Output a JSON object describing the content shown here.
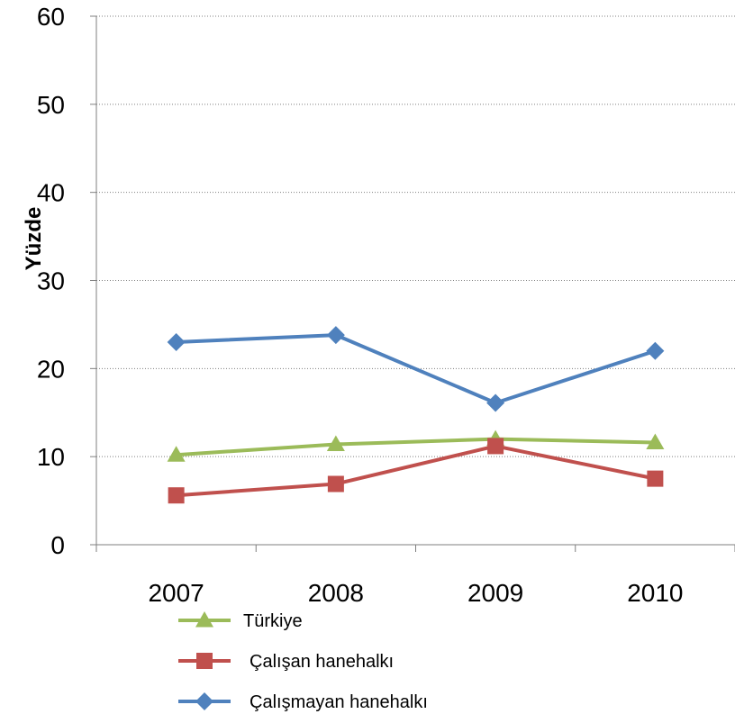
{
  "chart_data": {
    "type": "line",
    "title": "",
    "xlabel": "",
    "ylabel": "Yüzde",
    "categories": [
      "2007",
      "2008",
      "2009",
      "2010"
    ],
    "ylim": [
      0,
      60
    ],
    "yticks": [
      "0",
      "10",
      "20",
      "30",
      "40",
      "50",
      "60"
    ],
    "grid": "horizontal dotted",
    "legend_position": "bottom",
    "series": [
      {
        "name": "Türkiye",
        "values": [
          10.2,
          11.4,
          12.0,
          11.6
        ],
        "color": "#9bbb59",
        "marker": "triangle"
      },
      {
        "name": "Çalışan hanehalkı",
        "values": [
          5.6,
          6.9,
          11.2,
          7.5
        ],
        "color": "#c0504d",
        "marker": "square"
      },
      {
        "name": "Çalışmayan hanehalkı",
        "values": [
          23.0,
          23.8,
          16.1,
          22.0
        ],
        "color": "#4f81bd",
        "marker": "diamond"
      }
    ]
  }
}
